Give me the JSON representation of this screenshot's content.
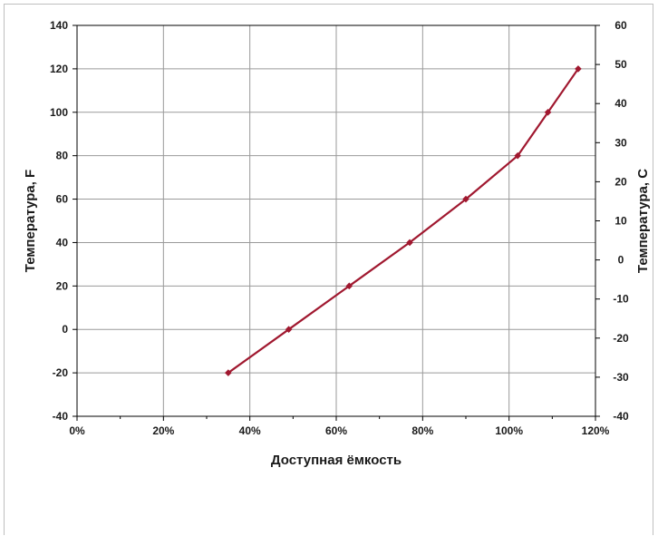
{
  "chart_data": {
    "type": "line",
    "title": "",
    "xlabel": "Доступная ёмкость",
    "ylabel": "Температура, F",
    "y2label": "Температура, C",
    "xlim": [
      0,
      120
    ],
    "ylim": [
      -40,
      140
    ],
    "y2lim": [
      -40,
      60
    ],
    "x_ticks": [
      "0%",
      "20%",
      "40%",
      "60%",
      "80%",
      "100%",
      "120%"
    ],
    "y_ticks": [
      "-40",
      "-20",
      "0",
      "20",
      "40",
      "60",
      "80",
      "100",
      "120",
      "140"
    ],
    "y2_ticks": [
      "-40",
      "-30",
      "-20",
      "-10",
      "0",
      "10",
      "20",
      "30",
      "40",
      "50",
      "60"
    ],
    "grid": true,
    "legend": "none",
    "series": [
      {
        "color": "#a0182f",
        "x": [
          35,
          49,
          63,
          77,
          90,
          102,
          109,
          116
        ],
        "y": [
          -20,
          0,
          20,
          40,
          60,
          80,
          100,
          120
        ]
      }
    ]
  }
}
